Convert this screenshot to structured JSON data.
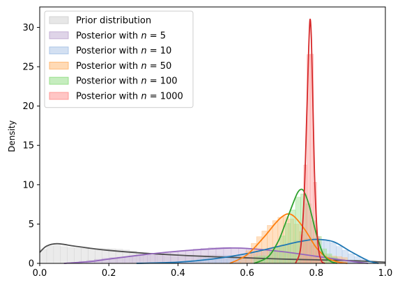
{
  "chart_data": {
    "type": "area",
    "xlabel": "",
    "ylabel": "Density",
    "xlim": [
      0.0,
      1.0
    ],
    "ylim": [
      0,
      32.6
    ],
    "xticks": [
      0.0,
      0.2,
      0.4,
      0.6,
      0.8,
      1.0
    ],
    "xtick_labels": [
      "0.0",
      "0.2",
      "0.4",
      "0.6",
      "0.8",
      "1.0"
    ],
    "yticks": [
      0,
      5,
      10,
      15,
      20,
      25,
      30
    ],
    "ytick_labels": [
      "0",
      "5",
      "10",
      "15",
      "20",
      "25",
      "30"
    ],
    "grid": false,
    "legend_position": "upper-left",
    "series": [
      {
        "name": "Prior distribution",
        "name_main": "Prior distribution",
        "name_n": "",
        "color": "#4d4d4d",
        "fill": "#d3d3d3",
        "density_x": [
          0.0,
          0.02,
          0.05,
          0.1,
          0.15,
          0.2,
          0.3,
          0.4,
          0.5,
          0.6,
          0.7,
          0.8,
          0.9,
          1.0
        ],
        "density_y": [
          1.4,
          2.2,
          2.5,
          2.2,
          1.9,
          1.65,
          1.3,
          1.05,
          0.85,
          0.7,
          0.55,
          0.45,
          0.35,
          0.15
        ],
        "hist_range": [
          0.0,
          1.0
        ],
        "bins": 50,
        "hist_noise": 0.25
      },
      {
        "name": "Posterior with n = 5",
        "name_main": "Posterior with ",
        "name_n": "5",
        "color": "#9467bd",
        "fill": "#c5b0d5",
        "density_x": [
          0.07,
          0.15,
          0.2,
          0.3,
          0.4,
          0.5,
          0.55,
          0.6,
          0.7,
          0.8,
          0.88,
          0.92,
          0.95
        ],
        "density_y": [
          0.0,
          0.25,
          0.55,
          1.1,
          1.55,
          1.85,
          1.95,
          1.9,
          1.5,
          0.9,
          0.4,
          0.15,
          0.0
        ],
        "hist_range": [
          0.07,
          0.95
        ],
        "bins": 40,
        "hist_noise": 0.15
      },
      {
        "name": "Posterior with n = 10",
        "name_main": "Posterior with ",
        "name_n": "10",
        "color": "#1f77b4",
        "fill": "#aec7e8",
        "density_x": [
          0.28,
          0.4,
          0.5,
          0.6,
          0.7,
          0.75,
          0.8,
          0.85,
          0.9,
          0.95,
          0.98
        ],
        "density_y": [
          0.0,
          0.15,
          0.55,
          1.25,
          2.25,
          2.75,
          3.05,
          2.75,
          1.5,
          0.35,
          0.0
        ],
        "hist_range": [
          0.28,
          0.98
        ],
        "bins": 40,
        "hist_noise": 0.25
      },
      {
        "name": "Posterior with n = 50",
        "name_main": "Posterior with ",
        "name_n": "50",
        "color": "#ff7f0e",
        "fill": "#ffbb78",
        "density_x": [
          0.55,
          0.6,
          0.65,
          0.68,
          0.7,
          0.72,
          0.74,
          0.77,
          0.8,
          0.83,
          0.86,
          0.89
        ],
        "density_y": [
          0.0,
          1.1,
          3.4,
          5.0,
          5.9,
          6.3,
          5.8,
          4.1,
          2.0,
          0.75,
          0.2,
          0.0
        ],
        "hist_range": [
          0.55,
          0.89
        ],
        "bins": 22,
        "hist_noise": 0.7
      },
      {
        "name": "Posterior with n = 100",
        "name_main": "Posterior with ",
        "name_n": "100",
        "color": "#2ca02c",
        "fill": "#98df8a",
        "density_x": [
          0.62,
          0.66,
          0.69,
          0.71,
          0.73,
          0.745,
          0.755,
          0.765,
          0.78,
          0.8,
          0.82,
          0.84,
          0.86
        ],
        "density_y": [
          0.0,
          0.8,
          2.8,
          5.0,
          7.3,
          8.9,
          9.4,
          9.1,
          7.3,
          3.8,
          1.2,
          0.3,
          0.0
        ],
        "hist_range": [
          0.62,
          0.86
        ],
        "bins": 16,
        "hist_noise": 0.8
      },
      {
        "name": "Posterior with n = 1000",
        "name_main": "Posterior with ",
        "name_n": "1000",
        "color": "#d62728",
        "fill": "#ff9896",
        "density_x": [
          0.74,
          0.755,
          0.765,
          0.772,
          0.778,
          0.782,
          0.786,
          0.79,
          0.796,
          0.805,
          0.815,
          0.825
        ],
        "density_y": [
          0.0,
          2.0,
          8.5,
          18.0,
          27.0,
          31.0,
          28.5,
          21.0,
          10.0,
          2.5,
          0.3,
          0.0
        ],
        "hist_range": [
          0.745,
          0.82
        ],
        "bins": 8,
        "hist_noise": 1.2
      }
    ]
  }
}
